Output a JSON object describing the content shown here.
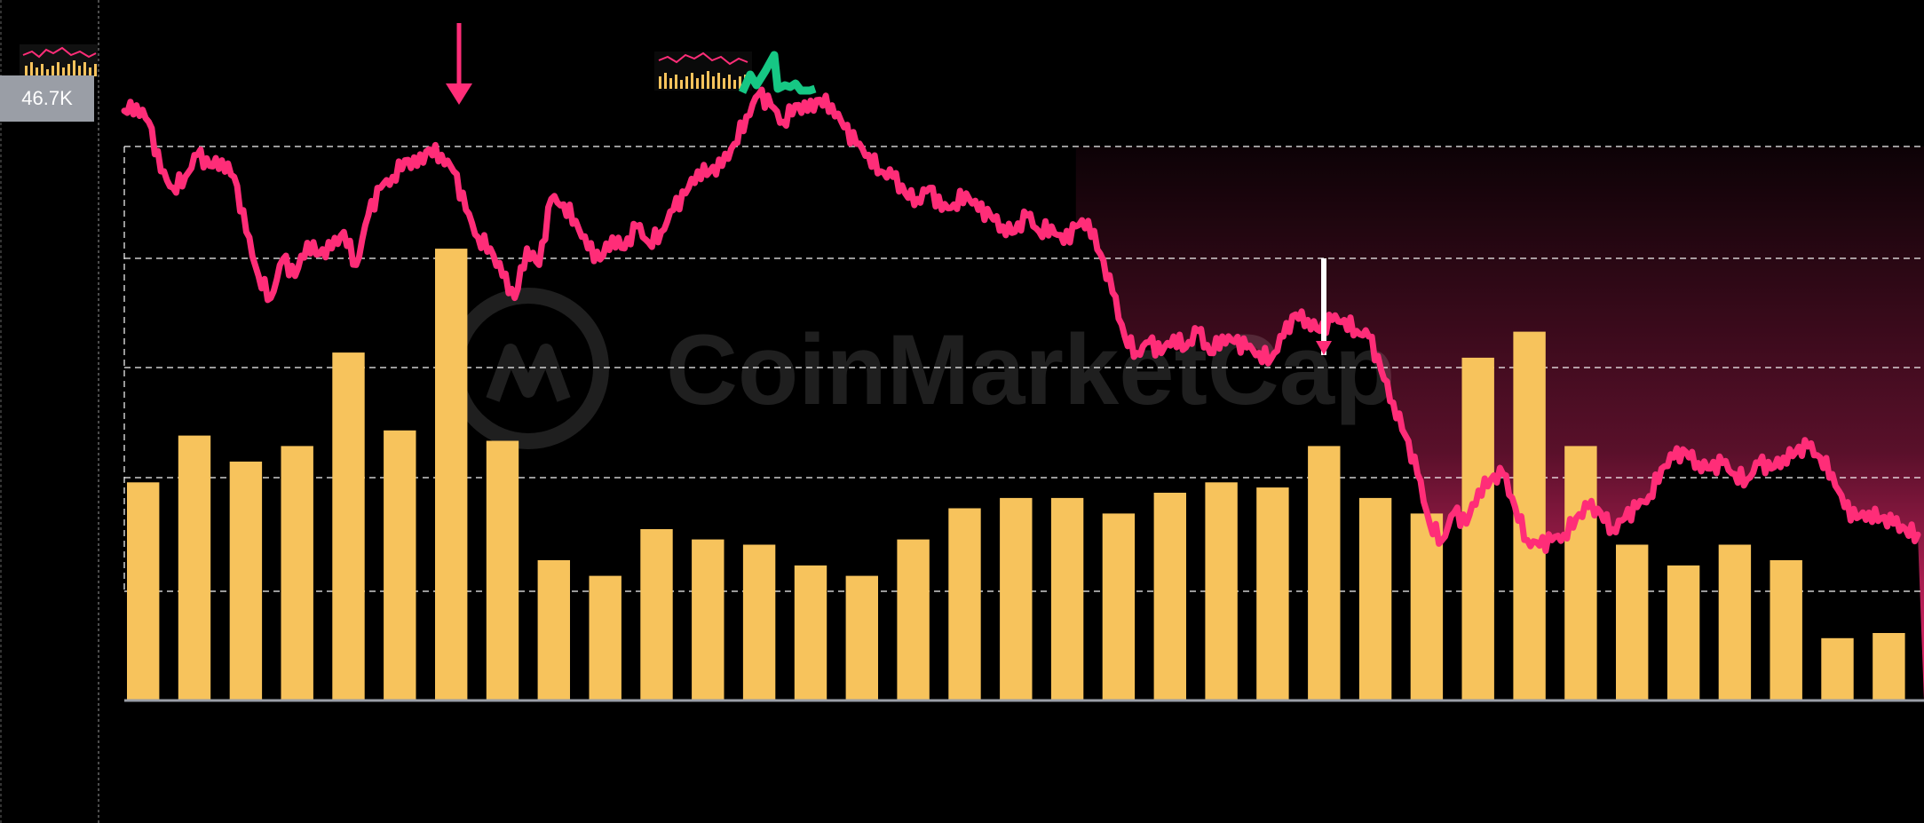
{
  "price_badge": "46.7K",
  "watermark": "CoinMarketCap",
  "colors": {
    "background": "#000000",
    "volume_bar": "#f7c35c",
    "price_line": "#ff2d78",
    "price_up": "#16c784",
    "gridline": "#ffffff",
    "badge": "#9a9ea6"
  },
  "chart_data": {
    "type": "bar",
    "volume_values": [
      42,
      51,
      46,
      49,
      67,
      52,
      87,
      50,
      27,
      24,
      33,
      31,
      30,
      26,
      24,
      31,
      37,
      39,
      39,
      36,
      40,
      42,
      41,
      49,
      39,
      36,
      66,
      71,
      49,
      30,
      26,
      30,
      27,
      12,
      13
    ],
    "price_path": [
      [
        0,
        96
      ],
      [
        1,
        97
      ],
      [
        2,
        94
      ],
      [
        3,
        85
      ],
      [
        4,
        82
      ],
      [
        5,
        84
      ],
      [
        6,
        88
      ],
      [
        7,
        86
      ],
      [
        8,
        87
      ],
      [
        9,
        84
      ],
      [
        10,
        74
      ],
      [
        11,
        66
      ],
      [
        12,
        62
      ],
      [
        13,
        69
      ],
      [
        14,
        66
      ],
      [
        15,
        72
      ],
      [
        16,
        70
      ],
      [
        17,
        71
      ],
      [
        18,
        74
      ],
      [
        19,
        68
      ],
      [
        20,
        77
      ],
      [
        21,
        82
      ],
      [
        22,
        84
      ],
      [
        23,
        87
      ],
      [
        24,
        86
      ],
      [
        25,
        89
      ],
      [
        26,
        88
      ],
      [
        27,
        85
      ],
      [
        28,
        78
      ],
      [
        29,
        73
      ],
      [
        30,
        71
      ],
      [
        31,
        66
      ],
      [
        32,
        62
      ],
      [
        33,
        71
      ],
      [
        34,
        68
      ],
      [
        35,
        80
      ],
      [
        36,
        79
      ],
      [
        37,
        76
      ],
      [
        38,
        71
      ],
      [
        39,
        69
      ],
      [
        40,
        73
      ],
      [
        41,
        71
      ],
      [
        42,
        75
      ],
      [
        43,
        72
      ],
      [
        44,
        74
      ],
      [
        45,
        78
      ],
      [
        46,
        81
      ],
      [
        47,
        85
      ],
      [
        48,
        85
      ],
      [
        49,
        86
      ],
      [
        50,
        90
      ],
      [
        51,
        95
      ],
      [
        52,
        99
      ],
      [
        53,
        97
      ],
      [
        54,
        94
      ],
      [
        55,
        97
      ],
      [
        56,
        96
      ],
      [
        57,
        98
      ],
      [
        58,
        97
      ],
      [
        59,
        93
      ],
      [
        60,
        90
      ],
      [
        61,
        88
      ],
      [
        62,
        85
      ],
      [
        63,
        84
      ],
      [
        64,
        81
      ],
      [
        65,
        80
      ],
      [
        66,
        82
      ],
      [
        67,
        78
      ],
      [
        68,
        79
      ],
      [
        69,
        81
      ],
      [
        70,
        78
      ],
      [
        71,
        77
      ],
      [
        72,
        75
      ],
      [
        73,
        74
      ],
      [
        74,
        77
      ],
      [
        75,
        74
      ],
      [
        76,
        75
      ],
      [
        77,
        72
      ],
      [
        78,
        75
      ],
      [
        79,
        76
      ],
      [
        80,
        70
      ],
      [
        81,
        63
      ],
      [
        82,
        55
      ],
      [
        83,
        52
      ],
      [
        84,
        54
      ],
      [
        85,
        52
      ],
      [
        86,
        55
      ],
      [
        87,
        53
      ],
      [
        88,
        56
      ],
      [
        89,
        52
      ],
      [
        90,
        55
      ],
      [
        91,
        54
      ],
      [
        92,
        53
      ],
      [
        93,
        52
      ],
      [
        94,
        51
      ],
      [
        95,
        55
      ],
      [
        96,
        59
      ],
      [
        97,
        58
      ],
      [
        98,
        56
      ],
      [
        99,
        58
      ],
      [
        100,
        58
      ],
      [
        101,
        56
      ],
      [
        102,
        55
      ],
      [
        103,
        49
      ],
      [
        104,
        43
      ],
      [
        105,
        37
      ],
      [
        106,
        30
      ],
      [
        107,
        21
      ],
      [
        108,
        18
      ],
      [
        109,
        23
      ],
      [
        110,
        21
      ],
      [
        111,
        27
      ],
      [
        112,
        29
      ],
      [
        113,
        30
      ],
      [
        114,
        24
      ],
      [
        115,
        18
      ],
      [
        116,
        17
      ],
      [
        117,
        18
      ],
      [
        118,
        19
      ],
      [
        119,
        22
      ],
      [
        120,
        24
      ],
      [
        121,
        23
      ],
      [
        122,
        20
      ],
      [
        123,
        22
      ],
      [
        124,
        24
      ],
      [
        125,
        26
      ],
      [
        126,
        31
      ],
      [
        127,
        33
      ],
      [
        128,
        34
      ],
      [
        129,
        32
      ],
      [
        130,
        31
      ],
      [
        131,
        32
      ],
      [
        132,
        30
      ],
      [
        133,
        29
      ],
      [
        134,
        32
      ],
      [
        135,
        31
      ],
      [
        136,
        33
      ],
      [
        137,
        34
      ],
      [
        138,
        35
      ],
      [
        139,
        33
      ],
      [
        140,
        30
      ],
      [
        141,
        24
      ],
      [
        142,
        22
      ],
      [
        143,
        23
      ],
      [
        144,
        22
      ],
      [
        145,
        21
      ],
      [
        146,
        20
      ],
      [
        147,
        19
      ]
    ]
  }
}
